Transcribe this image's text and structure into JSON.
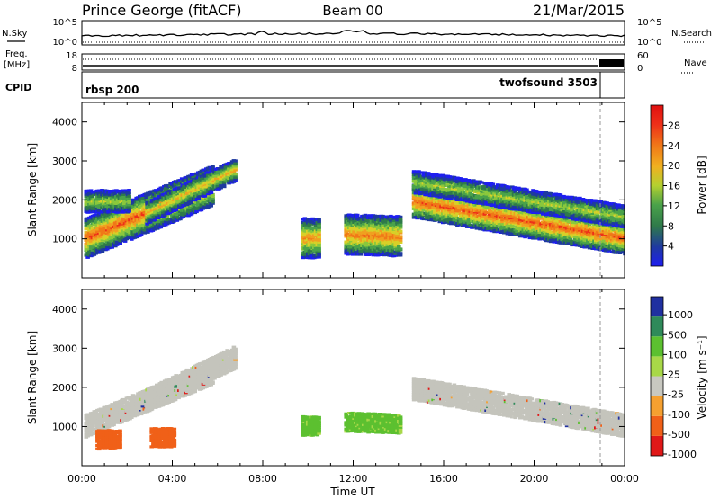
{
  "header": {
    "site": "Prince George (fitACF)",
    "beam": "Beam 00",
    "date": "21/Mar/2015"
  },
  "left_labels": {
    "nsky": "N.Sky",
    "freq_line1": "Freq.",
    "freq_line2": "[MHz]",
    "cpid": "CPID"
  },
  "right_labels": {
    "nsearch": "N.Search",
    "nave": "Nave"
  },
  "noise_panel": {
    "left_ticks": [
      "10^5",
      "10^0"
    ],
    "right_ticks": [
      "10^5",
      "10^0"
    ]
  },
  "freq_panel": {
    "left_ticks": [
      "18",
      "8"
    ],
    "right_ticks": [
      "60",
      "0"
    ]
  },
  "cpid_panel": {
    "left_text": "rbsp 200",
    "right_text": "twofsound 3503"
  },
  "colors": {
    "scale_power": [
      "#1e1ef0",
      "#1f3aa0",
      "#2f7a4a",
      "#4aa24a",
      "#8ac83c",
      "#d8d028",
      "#f0a020",
      "#f07818",
      "#ee3018",
      "#e01010"
    ],
    "velocity": [
      "#e01818",
      "#f06018",
      "#f5a030",
      "#c8c8c0",
      "#a8d848",
      "#5cc030",
      "#2f8a5a",
      "#2030a0"
    ],
    "ground_scatter": "#c4c4bc"
  },
  "chart_data": [
    {
      "type": "heatmap",
      "name": "power",
      "xlabel": "Time UT",
      "ylabel": "Slant Range [km]",
      "xlim": [
        0,
        24
      ],
      "ylim": [
        0,
        4500
      ],
      "x_tick_labels": [
        "00:00",
        "04:00",
        "08:00",
        "12:00",
        "16:00",
        "20:00",
        "00:00"
      ],
      "y_tick_labels": [
        "1000",
        "2000",
        "3000",
        "4000"
      ],
      "colorbar": {
        "label": "Power [dB]",
        "range": [
          0,
          32
        ],
        "ticks": [
          "4",
          "8",
          "12",
          "16",
          "20",
          "24",
          "28"
        ]
      },
      "features": [
        {
          "start_hr": 0.1,
          "end_hr": 5.7,
          "range_start_km": 1050,
          "range_end_km": 2400,
          "width_km": 500,
          "peak_db": 28
        },
        {
          "start_hr": 0.1,
          "end_hr": 2.0,
          "range_start_km": 2000,
          "range_end_km": 2000,
          "width_km": 250,
          "peak_db": 18
        },
        {
          "start_hr": 2.8,
          "end_hr": 6.7,
          "range_start_km": 1700,
          "range_end_km": 2800,
          "width_km": 250,
          "peak_db": 22
        },
        {
          "start_hr": 9.7,
          "end_hr": 10.4,
          "range_start_km": 1050,
          "range_end_km": 1050,
          "width_km": 500,
          "peak_db": 24
        },
        {
          "start_hr": 11.6,
          "end_hr": 14.0,
          "range_start_km": 1150,
          "range_end_km": 1100,
          "width_km": 500,
          "peak_db": 26
        },
        {
          "start_hr": 14.6,
          "end_hr": 24.0,
          "range_start_km": 2000,
          "range_end_km": 1050,
          "width_km": 420,
          "peak_db": 28
        },
        {
          "start_hr": 14.6,
          "end_hr": 24.0,
          "range_start_km": 2500,
          "range_end_km": 1600,
          "width_km": 250,
          "peak_db": 18
        }
      ]
    },
    {
      "type": "heatmap",
      "name": "velocity",
      "xlabel": "Time UT",
      "ylabel": "Slant Range [km]",
      "xlim": [
        0,
        24
      ],
      "ylim": [
        0,
        4500
      ],
      "x_tick_labels": [
        "00:00",
        "04:00",
        "08:00",
        "12:00",
        "16:00",
        "20:00",
        "00:00"
      ],
      "y_tick_labels": [
        "1000",
        "2000",
        "3000",
        "4000"
      ],
      "colorbar": {
        "label": "Velocity [m s⁻¹]",
        "ticks": [
          "1000",
          "500",
          "100",
          "25",
          "-25",
          "-100",
          "-500",
          "-1000"
        ]
      },
      "features": [
        {
          "start_hr": 0.1,
          "end_hr": 5.7,
          "range_start_km": 1050,
          "range_end_km": 2400,
          "kind": "ground"
        },
        {
          "start_hr": 2.8,
          "end_hr": 6.7,
          "range_start_km": 1700,
          "range_end_km": 2800,
          "kind": "ground"
        },
        {
          "start_hr": 14.6,
          "end_hr": 24.0,
          "range_start_km": 2000,
          "range_end_km": 1050,
          "kind": "ground"
        },
        {
          "start_hr": 0.6,
          "end_hr": 1.6,
          "range_start_km": 700,
          "range_end_km": 700,
          "velocity_ms": -300
        },
        {
          "start_hr": 3.0,
          "end_hr": 4.0,
          "range_start_km": 750,
          "range_end_km": 750,
          "velocity_ms": -300
        },
        {
          "start_hr": 9.7,
          "end_hr": 10.4,
          "range_start_km": 1050,
          "range_end_km": 1050,
          "velocity_ms": 200
        },
        {
          "start_hr": 11.6,
          "end_hr": 14.0,
          "range_start_km": 1150,
          "range_end_km": 1100,
          "velocity_ms": 200
        }
      ]
    }
  ]
}
